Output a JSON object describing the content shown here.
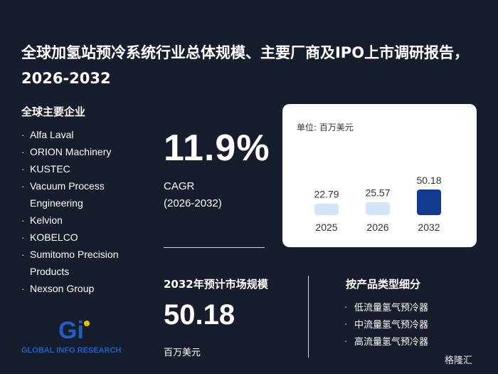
{
  "title": "全球加氢站预冷系统行业总体规模、主要厂商及IPO上市调研报告，2026-2032",
  "companies_heading": "全球主要企业",
  "companies": [
    "Alfa Laval",
    "ORION Machinery",
    "KUSTEC",
    "Vacuum Process Engineering",
    "Kelvion",
    "KOBELCO",
    "Sumitomo Precision Products",
    "Nexson Group"
  ],
  "cagr": {
    "value": "11.9%",
    "label": "CAGR",
    "period": "(2026-2032)"
  },
  "market": {
    "heading": "2032年预计市场规模",
    "value": "50.18",
    "unit": "百万美元"
  },
  "segment": {
    "heading": "按产品类型细分",
    "items": [
      "低流量氢气预冷器",
      "中流量氢气预冷器",
      "高流量氢气预冷器"
    ]
  },
  "chart_data": {
    "type": "bar",
    "unit_label": "单位: 百万美元",
    "categories": [
      "2025",
      "2026",
      "2032"
    ],
    "values": [
      22.79,
      25.57,
      50.18
    ],
    "value_labels": [
      "22.79",
      "25.57",
      "50.18"
    ],
    "colors": [
      "#d3e5f8",
      "#d3e5f8",
      "#123a8f"
    ],
    "ylim": [
      0,
      50.18
    ]
  },
  "logo_text": "GLOBAL INFO RESEARCH",
  "corner_brand": "格隆汇"
}
